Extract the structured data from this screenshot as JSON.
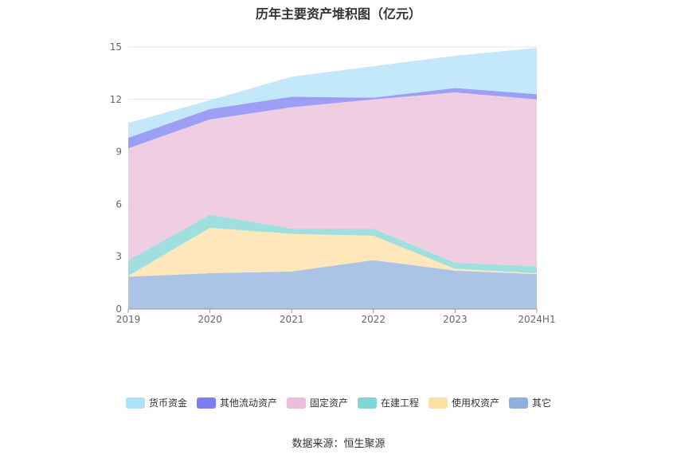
{
  "title": "历年主要资产堆积图（亿元）",
  "source": "数据来源：恒生聚源",
  "chart_data": {
    "type": "area",
    "stacked": true,
    "categories": [
      "2019",
      "2020",
      "2021",
      "2022",
      "2023",
      "2024H1"
    ],
    "ylim": [
      0,
      15
    ],
    "yticks": [
      0,
      3,
      6,
      9,
      12,
      15
    ],
    "grid": true,
    "legend_position": "bottom",
    "series": [
      {
        "name": "其它",
        "color": "#8fb0dd",
        "values": [
          1.85,
          2.05,
          2.15,
          2.8,
          2.2,
          2.0
        ]
      },
      {
        "name": "使用权资产",
        "color": "#fde0a4",
        "values": [
          0.05,
          2.6,
          2.15,
          1.4,
          0.1,
          0.05
        ]
      },
      {
        "name": "在建工程",
        "color": "#7fd6d4",
        "values": [
          0.9,
          0.75,
          0.3,
          0.4,
          0.35,
          0.4
        ]
      },
      {
        "name": "固定资产",
        "color": "#e9bddb",
        "values": [
          6.4,
          5.45,
          6.95,
          7.4,
          9.75,
          9.55
        ]
      },
      {
        "name": "其他流动资产",
        "color": "#7b7ff2",
        "values": [
          0.6,
          0.6,
          0.6,
          0.1,
          0.25,
          0.3
        ]
      },
      {
        "name": "货币资金",
        "color": "#aee0f8",
        "values": [
          0.85,
          0.5,
          1.15,
          1.8,
          1.85,
          2.65
        ]
      }
    ]
  },
  "legend_order": [
    "货币资金",
    "其他流动资产",
    "固定资产",
    "在建工程",
    "使用权资产",
    "其它"
  ]
}
